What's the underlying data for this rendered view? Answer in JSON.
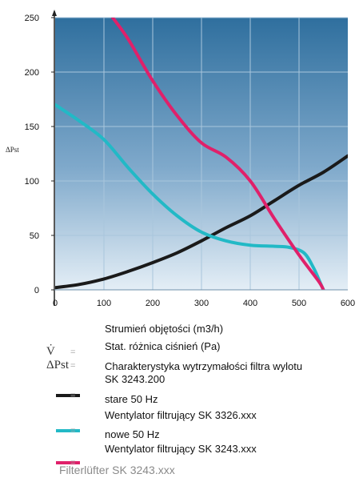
{
  "chart_data": {
    "type": "line",
    "title": "",
    "xlabel": "",
    "ylabel": "ΔPst",
    "xlim": [
      0,
      600
    ],
    "ylim": [
      0,
      250
    ],
    "x_ticks": [
      "0",
      "100",
      "200",
      "300",
      "400",
      "500",
      "600"
    ],
    "y_ticks": [
      "0",
      "50",
      "100",
      "150",
      "200",
      "250"
    ],
    "grid": true,
    "series": [
      {
        "key": "filter",
        "color": "#1a1a1a",
        "points": [
          [
            0,
            2
          ],
          [
            50,
            5
          ],
          [
            100,
            10
          ],
          [
            150,
            17
          ],
          [
            200,
            25
          ],
          [
            250,
            34
          ],
          [
            300,
            45
          ],
          [
            350,
            57
          ],
          [
            400,
            68
          ],
          [
            450,
            82
          ],
          [
            500,
            96
          ],
          [
            550,
            108
          ],
          [
            600,
            123
          ]
        ]
      },
      {
        "key": "new",
        "color": "#22b9c6",
        "points": [
          [
            0,
            170
          ],
          [
            50,
            155
          ],
          [
            100,
            138
          ],
          [
            150,
            112
          ],
          [
            200,
            88
          ],
          [
            250,
            68
          ],
          [
            300,
            53
          ],
          [
            350,
            45
          ],
          [
            400,
            41
          ],
          [
            450,
            40
          ],
          [
            480,
            39
          ],
          [
            510,
            34
          ],
          [
            530,
            20
          ],
          [
            545,
            5
          ],
          [
            550,
            0
          ]
        ]
      },
      {
        "key": "old",
        "color": "#e0206a",
        "points": [
          [
            118,
            250
          ],
          [
            150,
            230
          ],
          [
            200,
            192
          ],
          [
            250,
            160
          ],
          [
            300,
            135
          ],
          [
            350,
            122
          ],
          [
            400,
            100
          ],
          [
            450,
            65
          ],
          [
            500,
            32
          ],
          [
            540,
            8
          ],
          [
            550,
            0
          ]
        ]
      }
    ]
  },
  "legend": {
    "x_axis_quantity": "Strumień objętości (m3/h)",
    "y_axis_quantity": "Stat. różnica ciśnień (Pa)",
    "filter_line1": "Charakterystyka wytrzymałości filtra wylotu",
    "filter_line2": "SK 3243.200",
    "old_label": "stare 50 Hz",
    "fan_3326": "Wentylator filtrujący SK 3326.xxx",
    "new_label": "nowe 50 Hz",
    "fan_3243": "Wentylator filtrujący SK 3243.xxx",
    "leftover": "Filterlüfter SK 3243.xxx",
    "v_symbol": "V̇",
    "dp_symbol": "ΔPst",
    "equals": "="
  },
  "colors": {
    "plot_top": "#2f6f9e",
    "plot_bottom": "#dce9f3",
    "grid": "#a9c6dc",
    "axis": "#222222",
    "old": "#1a1a1a",
    "new": "#22b9c6",
    "pink": "#e0206a"
  }
}
